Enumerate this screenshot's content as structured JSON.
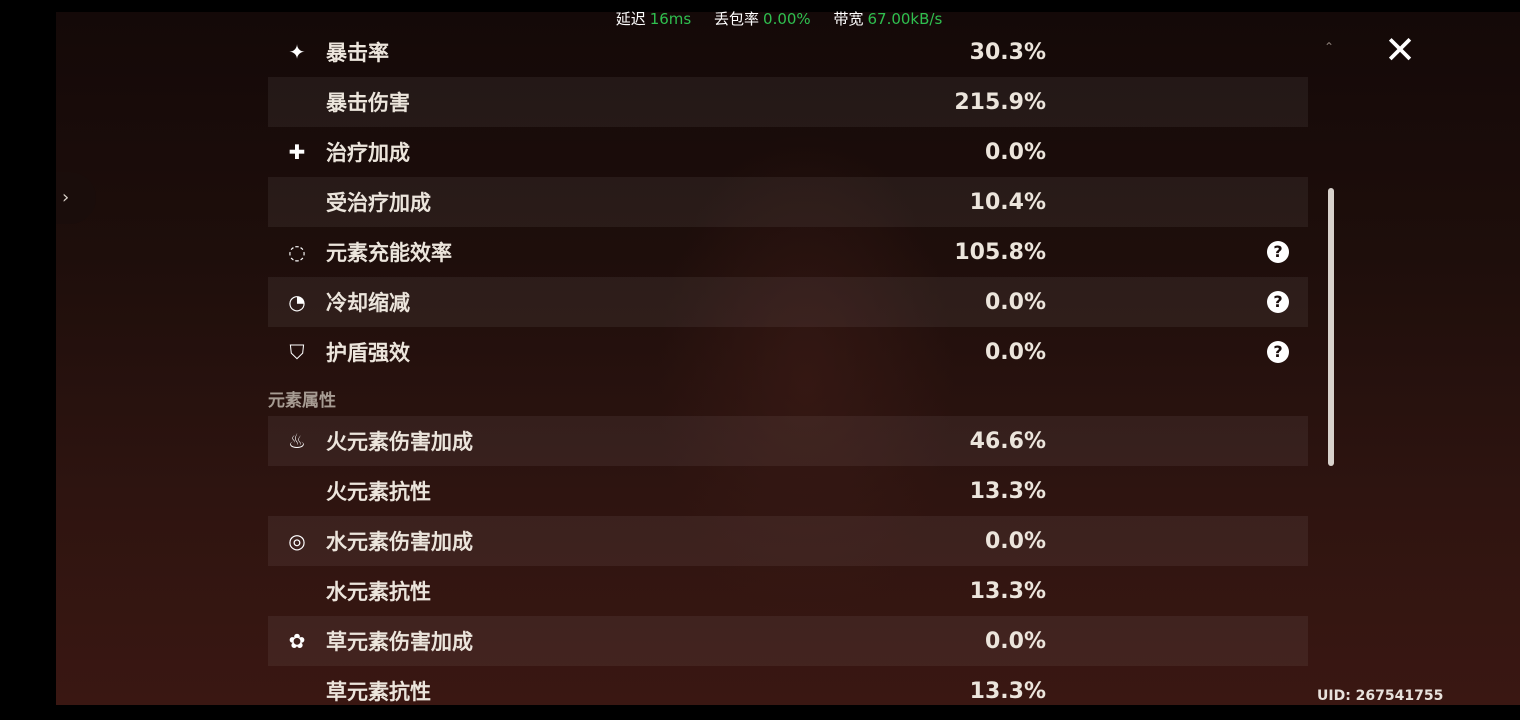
{
  "status": {
    "latency_label": "延迟",
    "latency_value": "16ms",
    "loss_label": "丢包率",
    "loss_value": "0.00%",
    "bandwidth_label": "带宽",
    "bandwidth_value": "67.00kB/s",
    "value_color": "#2fbf4f"
  },
  "advanced_stats": [
    {
      "icon": "crit-star-icon",
      "label": "暴击率",
      "value": "30.3%",
      "help": false
    },
    {
      "icon": "",
      "label": "暴击伤害",
      "value": "215.9%",
      "help": false
    },
    {
      "icon": "healing-cross-icon",
      "label": "治疗加成",
      "value": "0.0%",
      "help": false
    },
    {
      "icon": "",
      "label": "受治疗加成",
      "value": "10.4%",
      "help": false
    },
    {
      "icon": "energy-recharge-icon",
      "label": "元素充能效率",
      "value": "105.8%",
      "help": true
    },
    {
      "icon": "cooldown-icon",
      "label": "冷却缩减",
      "value": "0.0%",
      "help": true
    },
    {
      "icon": "shield-icon",
      "label": "护盾强效",
      "value": "0.0%",
      "help": true
    }
  ],
  "element_section_title": "元素属性",
  "element_stats": [
    {
      "icon": "pyro-icon",
      "label": "火元素伤害加成",
      "value": "46.6%"
    },
    {
      "icon": "",
      "label": "火元素抗性",
      "value": "13.3%"
    },
    {
      "icon": "hydro-icon",
      "label": "水元素伤害加成",
      "value": "0.0%"
    },
    {
      "icon": "",
      "label": "水元素抗性",
      "value": "13.3%"
    },
    {
      "icon": "dendro-icon",
      "label": "草元素伤害加成",
      "value": "0.0%"
    },
    {
      "icon": "",
      "label": "草元素抗性",
      "value": "13.3%"
    }
  ],
  "help_glyph": "?",
  "close_glyph": "✕",
  "uid": "UID: 267541755"
}
